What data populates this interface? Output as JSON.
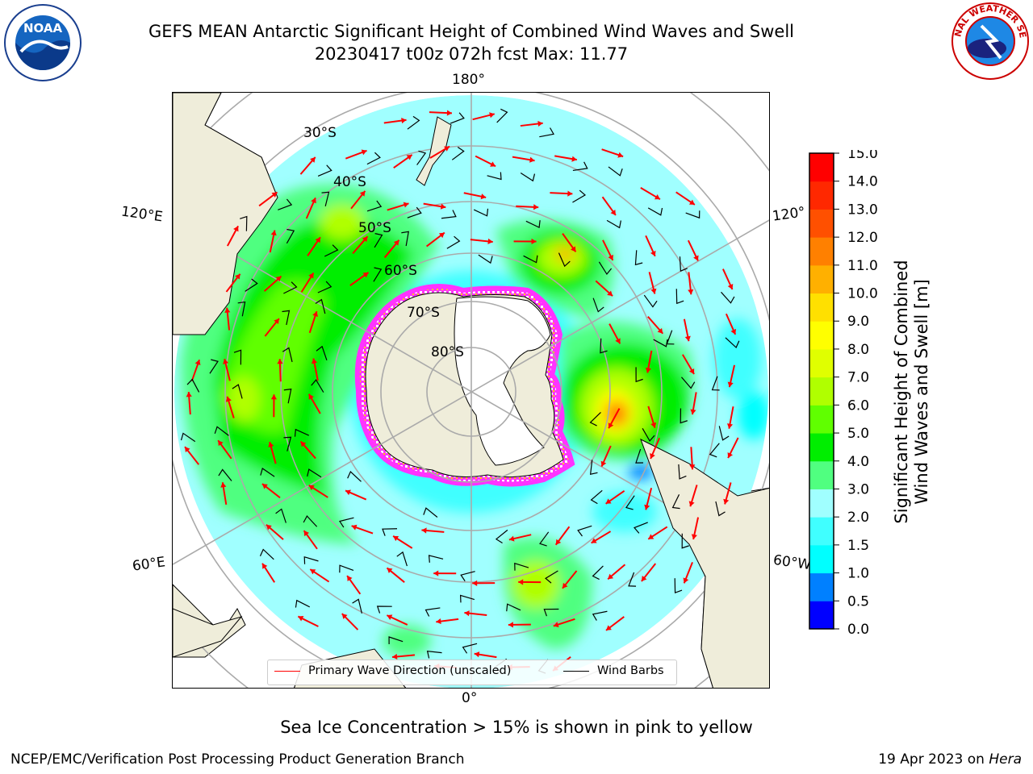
{
  "title_line1": "GEFS MEAN Antarctic Significant Height of Combined Wind Waves and Swell",
  "title_line2": "20230417 t00z 072h fcst   Max: 11.77",
  "logos": {
    "left": "NOAA",
    "right": "NATIONAL WEATHER SERVICE"
  },
  "longitude_labels": {
    "top": "180°",
    "bottom": "0°",
    "left_upper": "120°E",
    "left_lower": "60°E",
    "right_upper": "120°",
    "right_lower": "60°W"
  },
  "latitude_labels": [
    "30°S",
    "40°S",
    "50°S",
    "60°S",
    "70°S",
    "80°S"
  ],
  "legend": {
    "wave_label": "Primary Wave Direction (unscaled)",
    "barb_label": "Wind Barbs",
    "wave_color": "#ff0000",
    "barb_color": "#000000"
  },
  "colorbar": {
    "label_line1": "Significant Height of Combined",
    "label_line2": "Wind Waves and Swell [m]",
    "ticks": [
      "0.0",
      "0.5",
      "1.0",
      "1.5",
      "2.0",
      "3.0",
      "4.0",
      "5.0",
      "6.0",
      "7.0",
      "8.0",
      "9.0",
      "10.0",
      "11.0",
      "12.0",
      "13.0",
      "14.0",
      "15.0"
    ],
    "colors": [
      "#0000ff",
      "#0080ff",
      "#00ffff",
      "#40ffff",
      "#a0ffff",
      "#50ff80",
      "#00ee00",
      "#60ff00",
      "#b0ff00",
      "#e0ff00",
      "#ffff00",
      "#ffe000",
      "#ffb000",
      "#ff8000",
      "#ff5000",
      "#ff2800",
      "#ff0000"
    ]
  },
  "footnote": "Sea Ice Concentration > 15% is shown in pink to yellow",
  "credit": "NCEP/EMC/Verification Post Processing Product Generation Branch",
  "date_prefix": "19 Apr 2023 on ",
  "date_host": "Hera",
  "chart_data": {
    "type": "heatmap",
    "title": "GEFS MEAN Antarctic Significant Height of Combined Wind Waves and Swell",
    "subtitle": "20230417 t00z 072h fcst   Max: 11.77",
    "projection": "south polar stereographic",
    "variable": "Significant Height of Combined Wind Waves and Swell [m]",
    "max": 11.77,
    "color_levels": [
      0.0,
      0.5,
      1.0,
      1.5,
      2.0,
      3.0,
      4.0,
      5.0,
      6.0,
      7.0,
      8.0,
      9.0,
      10.0,
      11.0,
      12.0,
      13.0,
      14.0,
      15.0
    ],
    "latitude_circles": [
      "30°S",
      "40°S",
      "50°S",
      "60°S",
      "70°S",
      "80°S"
    ],
    "meridians": [
      "180°",
      "120°",
      "60°W",
      "0°",
      "60°E",
      "120°E"
    ],
    "series": [
      {
        "name": "Primary Wave Direction (unscaled)"
      },
      {
        "name": "Wind Barbs"
      }
    ]
  }
}
